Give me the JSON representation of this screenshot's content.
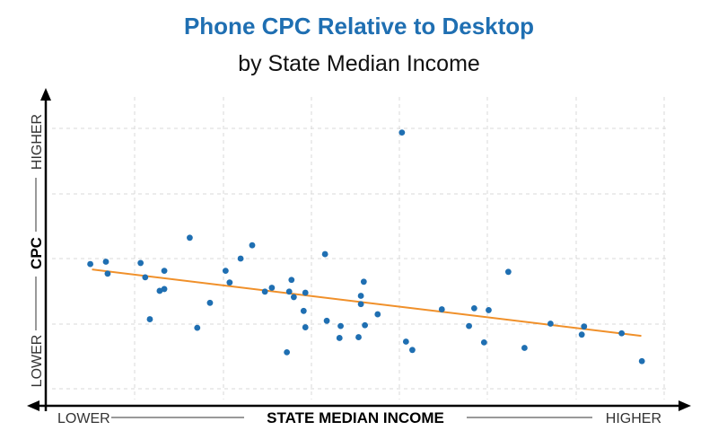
{
  "chart_data": {
    "type": "scatter",
    "title": "Phone CPC Relative to Desktop",
    "subtitle": "by State Median Income",
    "xlabel": "STATE MEDIAN INCOME",
    "ylabel": "CPC",
    "x_low_label": "LOWER",
    "x_high_label": "HIGHER",
    "y_low_label": "LOWER",
    "y_high_label": "HIGHER",
    "xlim": [
      0,
      100
    ],
    "ylim": [
      0,
      100
    ],
    "grid": true,
    "colors": {
      "points": "#1f6fb2",
      "trend": "#f0902a",
      "title": "#1f6fb2",
      "grid": "#d9d9d9"
    },
    "points": [
      {
        "x": 7.7,
        "y": 47.9
      },
      {
        "x": 10.4,
        "y": 48.8
      },
      {
        "x": 10.7,
        "y": 44.2
      },
      {
        "x": 16.4,
        "y": 48.3
      },
      {
        "x": 17.2,
        "y": 42.8
      },
      {
        "x": 18.0,
        "y": 26.7
      },
      {
        "x": 19.7,
        "y": 37.6
      },
      {
        "x": 20.5,
        "y": 38.3
      },
      {
        "x": 20.5,
        "y": 45.3
      },
      {
        "x": 24.9,
        "y": 58.0
      },
      {
        "x": 26.2,
        "y": 23.4
      },
      {
        "x": 28.4,
        "y": 33.0
      },
      {
        "x": 31.1,
        "y": 45.3
      },
      {
        "x": 31.8,
        "y": 40.8
      },
      {
        "x": 33.7,
        "y": 50.0
      },
      {
        "x": 35.7,
        "y": 55.1
      },
      {
        "x": 37.9,
        "y": 37.3
      },
      {
        "x": 39.1,
        "y": 38.8
      },
      {
        "x": 41.7,
        "y": 14.0
      },
      {
        "x": 42.1,
        "y": 37.3
      },
      {
        "x": 42.5,
        "y": 41.8
      },
      {
        "x": 42.9,
        "y": 35.2
      },
      {
        "x": 44.6,
        "y": 29.9
      },
      {
        "x": 44.9,
        "y": 23.6
      },
      {
        "x": 44.9,
        "y": 36.9
      },
      {
        "x": 48.3,
        "y": 51.7
      },
      {
        "x": 48.6,
        "y": 26.1
      },
      {
        "x": 50.8,
        "y": 19.5
      },
      {
        "x": 51.0,
        "y": 24.1
      },
      {
        "x": 54.1,
        "y": 19.8
      },
      {
        "x": 54.5,
        "y": 35.7
      },
      {
        "x": 54.5,
        "y": 32.5
      },
      {
        "x": 55.0,
        "y": 41.1
      },
      {
        "x": 55.2,
        "y": 24.4
      },
      {
        "x": 57.4,
        "y": 28.6
      },
      {
        "x": 61.6,
        "y": 98.4
      },
      {
        "x": 62.3,
        "y": 18.1
      },
      {
        "x": 63.4,
        "y": 14.9
      },
      {
        "x": 68.5,
        "y": 30.5
      },
      {
        "x": 73.2,
        "y": 24.1
      },
      {
        "x": 74.1,
        "y": 30.9
      },
      {
        "x": 75.8,
        "y": 17.8
      },
      {
        "x": 76.6,
        "y": 30.2
      },
      {
        "x": 80.0,
        "y": 44.9
      },
      {
        "x": 82.8,
        "y": 15.7
      },
      {
        "x": 87.3,
        "y": 25.0
      },
      {
        "x": 92.7,
        "y": 20.8
      },
      {
        "x": 93.1,
        "y": 23.9
      },
      {
        "x": 99.6,
        "y": 21.3
      },
      {
        "x": 103.1,
        "y": 10.6
      }
    ],
    "trendline": {
      "x": [
        8.0,
        103.0
      ],
      "y": [
        45.8,
        20.3
      ]
    }
  }
}
